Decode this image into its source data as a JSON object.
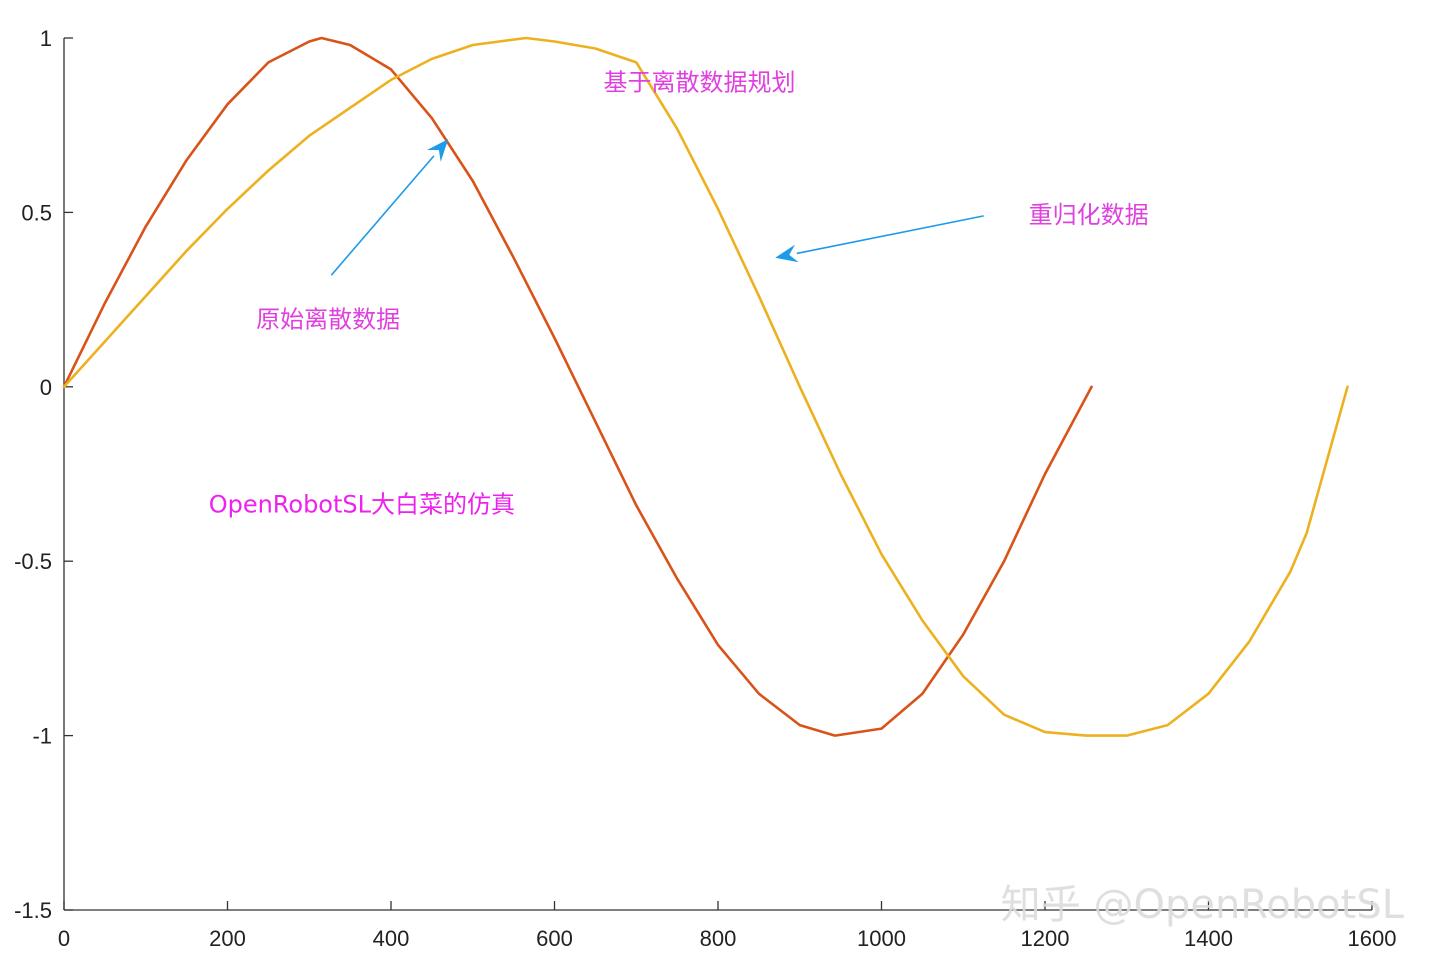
{
  "chart_data": {
    "type": "line",
    "title": "",
    "xlabel": "",
    "ylabel": "",
    "xlim": [
      0,
      1600
    ],
    "ylim": [
      -1.5,
      1
    ],
    "grid": false,
    "legend": "none",
    "x_ticks": [
      0,
      200,
      400,
      600,
      800,
      1000,
      1200,
      1400,
      1600
    ],
    "y_ticks": [
      -1.5,
      -1,
      -0.5,
      0,
      0.5,
      1
    ],
    "x_tick_labels": [
      "0",
      "200",
      "400",
      "600",
      "800",
      "1000",
      "1200",
      "1400",
      "1600"
    ],
    "y_tick_labels": [
      "-1.5",
      "-1",
      "-0.5",
      "0",
      "0.5",
      "1"
    ],
    "series": [
      {
        "color": "#d95319",
        "x": [
          0,
          50,
          100,
          150,
          200,
          250,
          300,
          315,
          350,
          400,
          450,
          500,
          550,
          600,
          650,
          700,
          750,
          800,
          850,
          900,
          943,
          1000,
          1050,
          1100,
          1150,
          1200,
          1257
        ],
        "y": [
          0.0,
          0.24,
          0.46,
          0.65,
          0.81,
          0.93,
          0.99,
          1.0,
          0.98,
          0.91,
          0.77,
          0.59,
          0.37,
          0.14,
          -0.1,
          -0.34,
          -0.55,
          -0.74,
          -0.88,
          -0.97,
          -1.0,
          -0.98,
          -0.88,
          -0.71,
          -0.5,
          -0.25,
          0.0
        ]
      },
      {
        "color": "#edb120",
        "x": [
          0,
          50,
          100,
          150,
          200,
          250,
          300,
          350,
          400,
          450,
          500,
          565,
          600,
          650,
          700,
          750,
          800,
          850,
          900,
          950,
          1000,
          1050,
          1100,
          1150,
          1200,
          1250,
          1300,
          1350,
          1400,
          1450,
          1500,
          1520,
          1570
        ],
        "y": [
          0.0,
          0.13,
          0.26,
          0.39,
          0.51,
          0.62,
          0.72,
          0.8,
          0.88,
          0.94,
          0.98,
          1.0,
          0.99,
          0.97,
          0.93,
          0.74,
          0.51,
          0.26,
          0.0,
          -0.25,
          -0.48,
          -0.67,
          -0.83,
          -0.94,
          -0.99,
          -1.0,
          -1.0,
          -0.97,
          -0.88,
          -0.73,
          -0.53,
          -0.42,
          0.0
        ]
      }
    ],
    "annotations": [
      {
        "text": "基于离散数据规划",
        "x": 660,
        "y": 0.85,
        "color": "#e040e0"
      },
      {
        "text": "重归化数据",
        "x": 1180,
        "y": 0.47,
        "color": "#e040e0"
      },
      {
        "text": "原始离散数据",
        "x": 235,
        "y": 0.17,
        "color": "#e040e0"
      },
      {
        "text": "OpenRobotSL大白菜的仿真",
        "x": 177,
        "y": -0.36,
        "color": "#ee22ee"
      }
    ],
    "arrows": [
      {
        "from": [
          327,
          0.32
        ],
        "to": [
          470,
          0.71
        ],
        "color": "#1e9be8"
      },
      {
        "from": [
          1125,
          0.49
        ],
        "to": [
          870,
          0.37
        ],
        "color": "#1e9be8"
      }
    ]
  },
  "watermark": {
    "text": "知乎 @OpenRobotSL"
  }
}
